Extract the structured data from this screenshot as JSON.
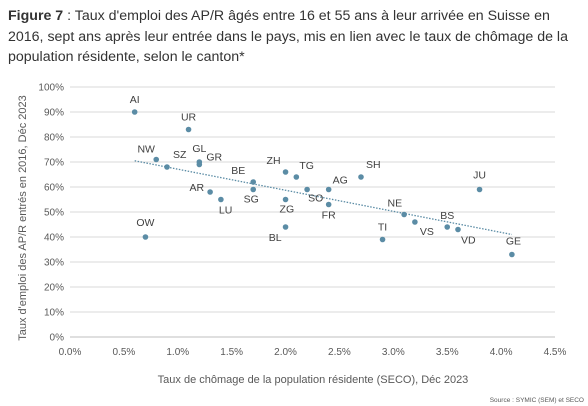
{
  "caption": {
    "figure_label": "Figure 7",
    "text": " : Taux d'emploi des AP/R âgés entre 16 et 55 ans à leur arrivée en Suisse en 2016, sept ans après leur entrée dans le pays, mis en lien avec le taux de chômage de la population résidente, selon le canton*"
  },
  "chart_data": {
    "type": "scatter",
    "xlabel": "Taux de chômage de la population résidente (SECO), Déc 2023",
    "ylabel": "Taux d'emploi des AP/R entrés en 2016, Déc 2023",
    "xlim": [
      0,
      4.5
    ],
    "ylim": [
      0,
      100
    ],
    "x_ticks": [
      "0.0%",
      "0.5%",
      "1.0%",
      "1.5%",
      "2.0%",
      "2.5%",
      "3.0%",
      "3.5%",
      "4.0%",
      "4.5%"
    ],
    "y_ticks": [
      "0%",
      "10%",
      "20%",
      "30%",
      "40%",
      "50%",
      "60%",
      "70%",
      "80%",
      "90%",
      "100%"
    ],
    "grid": "horizontal",
    "trendline": {
      "type": "linear",
      "x": [
        0.6,
        4.1
      ],
      "y": [
        70.5,
        41
      ]
    },
    "points": [
      {
        "label": "AI",
        "x": 0.6,
        "y": 90
      },
      {
        "label": "UR",
        "x": 1.1,
        "y": 83
      },
      {
        "label": "NW",
        "x": 0.8,
        "y": 71
      },
      {
        "label": "SZ",
        "x": 0.9,
        "y": 68
      },
      {
        "label": "GL",
        "x": 1.2,
        "y": 70
      },
      {
        "label": "GR",
        "x": 1.2,
        "y": 69
      },
      {
        "label": "OW",
        "x": 0.7,
        "y": 40
      },
      {
        "label": "AR",
        "x": 1.3,
        "y": 58
      },
      {
        "label": "LU",
        "x": 1.4,
        "y": 55
      },
      {
        "label": "BE",
        "x": 1.7,
        "y": 62
      },
      {
        "label": "SG",
        "x": 1.7,
        "y": 59
      },
      {
        "label": "ZH",
        "x": 2.0,
        "y": 66
      },
      {
        "label": "TG",
        "x": 2.1,
        "y": 64
      },
      {
        "label": "ZG",
        "x": 2.0,
        "y": 55
      },
      {
        "label": "BL",
        "x": 2.0,
        "y": 44
      },
      {
        "label": "SO",
        "x": 2.2,
        "y": 59
      },
      {
        "label": "AG",
        "x": 2.4,
        "y": 59
      },
      {
        "label": "FR",
        "x": 2.4,
        "y": 53
      },
      {
        "label": "SH",
        "x": 2.7,
        "y": 64
      },
      {
        "label": "TI",
        "x": 2.9,
        "y": 39
      },
      {
        "label": "NE",
        "x": 3.1,
        "y": 49
      },
      {
        "label": "VS",
        "x": 3.2,
        "y": 46
      },
      {
        "label": "BS",
        "x": 3.5,
        "y": 44
      },
      {
        "label": "VD",
        "x": 3.6,
        "y": 43
      },
      {
        "label": "JU",
        "x": 3.8,
        "y": 59
      },
      {
        "label": "GE",
        "x": 4.1,
        "y": 33
      }
    ],
    "colors": {
      "point": "#5b8ca5",
      "trendline": "#5b8ca5",
      "grid": "#d9d9d9"
    }
  },
  "source": "Source : SYMIC (SEM) et SECO"
}
